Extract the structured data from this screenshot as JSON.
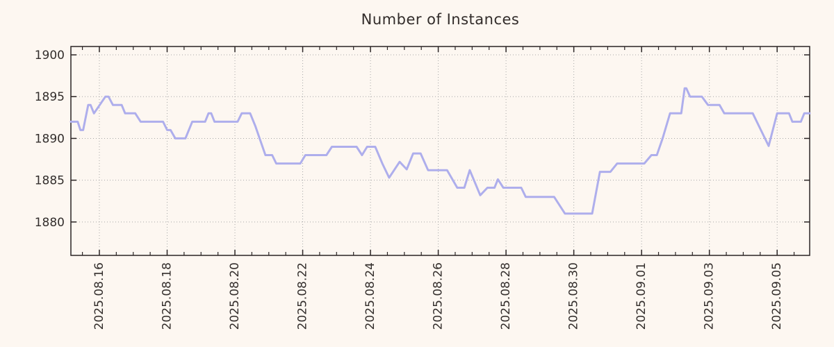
{
  "title": "Number of Instances",
  "colors": {
    "background": "#fdf7f1",
    "line": "#aeaeec",
    "grid": "#a6a6a6",
    "axis": "#2a2424",
    "text": "#332e2c"
  },
  "chart_data": {
    "type": "line",
    "title": "Number of Instances",
    "xlabel": "",
    "ylabel": "",
    "legend": "none",
    "grid": "dotted",
    "x_unit": "days since 2025-08-15 00:00",
    "xlim": [
      0.16,
      21.96
    ],
    "ylim": [
      1876.0,
      1901.0
    ],
    "y_ticks": [
      1880,
      1885,
      1890,
      1895,
      1900
    ],
    "x_minor_interval": 0.5,
    "x_ticks_major": [
      {
        "t": 1,
        "label": "2025.08.16"
      },
      {
        "t": 3,
        "label": "2025.08.18"
      },
      {
        "t": 5,
        "label": "2025.08.20"
      },
      {
        "t": 7,
        "label": "2025.08.22"
      },
      {
        "t": 9,
        "label": "2025.08.24"
      },
      {
        "t": 11,
        "label": "2025.08.26"
      },
      {
        "t": 13,
        "label": "2025.08.28"
      },
      {
        "t": 15,
        "label": "2025.08.30"
      },
      {
        "t": 17,
        "label": "2025.09.01"
      },
      {
        "t": 19,
        "label": "2025.09.03"
      },
      {
        "t": 21,
        "label": "2025.09.05"
      }
    ],
    "series": [
      {
        "name": "instances",
        "color": "#aeaeec",
        "points": [
          [
            0.16,
            1892
          ],
          [
            0.36,
            1892
          ],
          [
            0.44,
            1891
          ],
          [
            0.52,
            1891
          ],
          [
            0.67,
            1894
          ],
          [
            0.74,
            1894
          ],
          [
            0.84,
            1893
          ],
          [
            1.18,
            1895
          ],
          [
            1.27,
            1895
          ],
          [
            1.4,
            1894
          ],
          [
            1.66,
            1894
          ],
          [
            1.76,
            1893
          ],
          [
            2.06,
            1893
          ],
          [
            2.22,
            1892
          ],
          [
            2.88,
            1892
          ],
          [
            3.0,
            1891
          ],
          [
            3.1,
            1891
          ],
          [
            3.24,
            1890
          ],
          [
            3.54,
            1890
          ],
          [
            3.74,
            1892
          ],
          [
            4.12,
            1892
          ],
          [
            4.22,
            1893
          ],
          [
            4.3,
            1893
          ],
          [
            4.4,
            1892
          ],
          [
            5.08,
            1892
          ],
          [
            5.2,
            1893
          ],
          [
            5.45,
            1893
          ],
          [
            5.6,
            1891.5
          ],
          [
            5.9,
            1888
          ],
          [
            6.1,
            1888
          ],
          [
            6.22,
            1887
          ],
          [
            6.93,
            1887
          ],
          [
            7.08,
            1888
          ],
          [
            7.7,
            1888
          ],
          [
            7.86,
            1889
          ],
          [
            8.59,
            1889
          ],
          [
            8.75,
            1888
          ],
          [
            8.9,
            1889
          ],
          [
            9.14,
            1889
          ],
          [
            9.35,
            1887
          ],
          [
            9.55,
            1885.3
          ],
          [
            9.86,
            1887.2
          ],
          [
            10.07,
            1886.3
          ],
          [
            10.26,
            1888.2
          ],
          [
            10.48,
            1888.2
          ],
          [
            10.7,
            1886.2
          ],
          [
            11.26,
            1886.2
          ],
          [
            11.56,
            1884.1
          ],
          [
            11.77,
            1884.1
          ],
          [
            11.93,
            1886.2
          ],
          [
            12.24,
            1883.2
          ],
          [
            12.45,
            1884.1
          ],
          [
            12.66,
            1884.1
          ],
          [
            12.76,
            1885.1
          ],
          [
            12.92,
            1884.1
          ],
          [
            13.45,
            1884.1
          ],
          [
            13.58,
            1883
          ],
          [
            14.42,
            1883
          ],
          [
            14.74,
            1881
          ],
          [
            15.54,
            1881
          ],
          [
            15.77,
            1886
          ],
          [
            16.08,
            1886
          ],
          [
            16.28,
            1887
          ],
          [
            17.08,
            1887
          ],
          [
            17.29,
            1888
          ],
          [
            17.45,
            1888
          ],
          [
            17.62,
            1890
          ],
          [
            17.84,
            1893
          ],
          [
            18.17,
            1893
          ],
          [
            18.27,
            1896
          ],
          [
            18.32,
            1896
          ],
          [
            18.43,
            1895
          ],
          [
            18.78,
            1895
          ],
          [
            18.96,
            1894
          ],
          [
            19.3,
            1894
          ],
          [
            19.44,
            1893
          ],
          [
            20.28,
            1893
          ],
          [
            20.52,
            1891
          ],
          [
            20.75,
            1889.1
          ],
          [
            21.0,
            1893
          ],
          [
            21.35,
            1893
          ],
          [
            21.45,
            1892
          ],
          [
            21.7,
            1892
          ],
          [
            21.8,
            1893
          ],
          [
            21.96,
            1893
          ]
        ]
      }
    ]
  }
}
